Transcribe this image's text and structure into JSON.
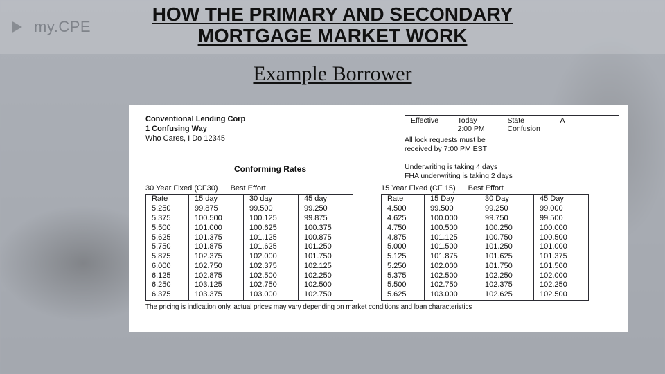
{
  "header": {
    "logo_my": "my.",
    "logo_cpe": "CPE",
    "title_line1": "HOW THE PRIMARY AND SECONDARY",
    "title_line2": "MORTGAGE MARKET WORK"
  },
  "subtitle": "Example Borrower",
  "colors": {
    "page_bg": "#a8adb5",
    "sheet_bg": "#ffffff",
    "text": "#111111",
    "logo_grey": "#7f838a",
    "table_border": "#2c2c33"
  },
  "rate_sheet": {
    "lender_name": "Conventional Lending Corp",
    "lender_addr1": "1 Confusing Way",
    "lender_addr2": "Who Cares, I Do 12345",
    "section_title": "Conforming Rates",
    "effective": {
      "h1": "Effective",
      "h2_line1": "Today",
      "h2_line2": "2:00 PM",
      "h3_line1": "State",
      "h3_line2": "Confusion",
      "h4": "A"
    },
    "lock_note_line1": "All lock requests must be",
    "lock_note_line2": "received by 7:00 PM EST",
    "uw_note_line1": "Underwriting is taking 4 days",
    "uw_note_line2": "FHA underwriting is taking 2 days",
    "table30": {
      "product": "30 Year Fixed (CF30)",
      "effort": "Best Effort",
      "columns": [
        "Rate",
        "15 day",
        "30 day",
        "45 day"
      ],
      "rows": [
        [
          "5.250",
          "99.875",
          "99.500",
          "99.250"
        ],
        [
          "5.375",
          "100.500",
          "100.125",
          "99.875"
        ],
        [
          "5.500",
          "101.000",
          "100.625",
          "100.375"
        ],
        [
          "5.625",
          "101.375",
          "101.125",
          "100.875"
        ],
        [
          "5.750",
          "101.875",
          "101.625",
          "101.250"
        ],
        [
          "5.875",
          "102.375",
          "102.000",
          "101.750"
        ],
        [
          "6.000",
          "102.750",
          "102.375",
          "102.125"
        ],
        [
          "6.125",
          "102.875",
          "102.500",
          "102.250"
        ],
        [
          "6.250",
          "103.125",
          "102.750",
          "102.500"
        ],
        [
          "6.375",
          "103.375",
          "103.000",
          "102.750"
        ]
      ]
    },
    "table15": {
      "product": "15 Year Fixed (CF 15)",
      "effort": "Best Effort",
      "columns": [
        "Rate",
        "15 Day",
        "30 Day",
        "45 Day"
      ],
      "rows": [
        [
          "4.500",
          "99.500",
          "99.250",
          "99.000"
        ],
        [
          "4.625",
          "100.000",
          "99.750",
          "99.500"
        ],
        [
          "4.750",
          "100.500",
          "100.250",
          "100.000"
        ],
        [
          "4.875",
          "101.125",
          "100.750",
          "100.500"
        ],
        [
          "5.000",
          "101.500",
          "101.250",
          "101.000"
        ],
        [
          "5.125",
          "101.875",
          "101.625",
          "101.375"
        ],
        [
          "5.250",
          "102.000",
          "101.750",
          "101.500"
        ],
        [
          "5.375",
          "102.500",
          "102.250",
          "102.000"
        ],
        [
          "5.500",
          "102.750",
          "102.375",
          "102.250"
        ],
        [
          "5.625",
          "103.000",
          "102.625",
          "102.500"
        ]
      ]
    },
    "footnote": "The pricing is indication only, actual prices may vary depending on market conditions and loan characteristics"
  }
}
